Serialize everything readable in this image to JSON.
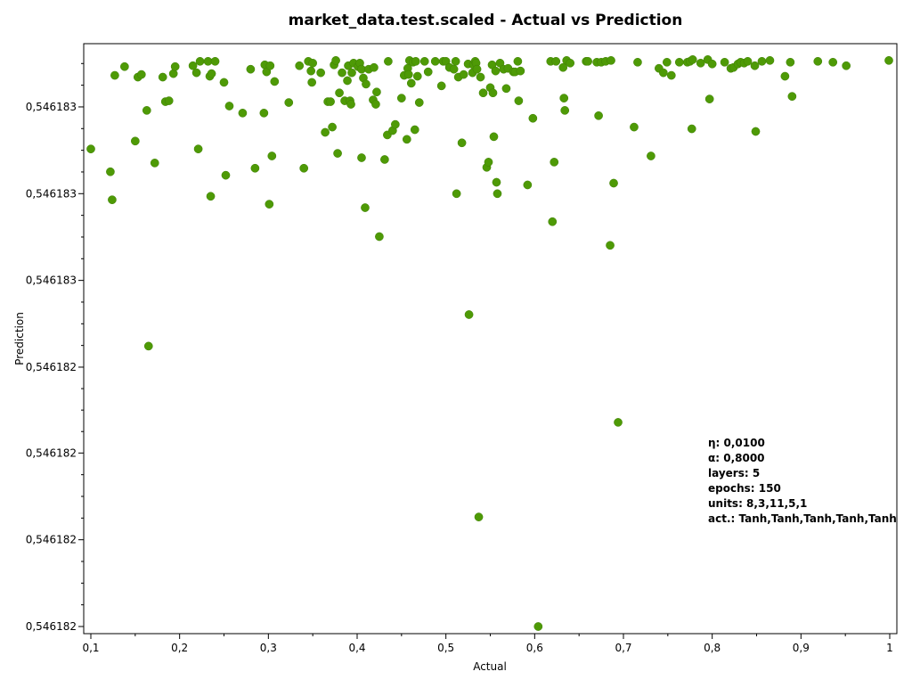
{
  "chart_data": {
    "type": "scatter",
    "title": "market_data.test.scaled - Actual vs Prediction",
    "xlabel": "Actual",
    "ylabel": "Prediction",
    "xlim": [
      0.095,
      1.007
    ],
    "ylim": [
      0,
      655
    ],
    "x_ticks": [
      {
        "v": 0.1,
        "label": "0,1"
      },
      {
        "v": 0.2,
        "label": "0,2"
      },
      {
        "v": 0.3,
        "label": "0,3"
      },
      {
        "v": 0.4,
        "label": "0,4"
      },
      {
        "v": 0.5,
        "label": "0,5"
      },
      {
        "v": 0.6,
        "label": "0,6"
      },
      {
        "v": 0.7,
        "label": "0,7"
      },
      {
        "v": 0.8,
        "label": "0,8"
      },
      {
        "v": 0.9,
        "label": "0,9"
      },
      {
        "v": 1.0,
        "label": "1"
      }
    ],
    "y_ticks": [
      {
        "v": 0,
        "label": "0,546182"
      },
      {
        "v": 99,
        "label": "0,546182"
      },
      {
        "v": 198,
        "label": "0,546182"
      },
      {
        "v": 296,
        "label": "0,546182"
      },
      {
        "v": 395,
        "label": "0,546183"
      },
      {
        "v": 494,
        "label": "0,546183"
      },
      {
        "v": 593,
        "label": "0,546183"
      }
    ],
    "grid": false,
    "legend": "none",
    "color": "#4e9a06",
    "points": [
      [
        0.1,
        545
      ],
      [
        0.122,
        519
      ],
      [
        0.124,
        487
      ],
      [
        0.127,
        629
      ],
      [
        0.138,
        639
      ],
      [
        0.15,
        554
      ],
      [
        0.153,
        627
      ],
      [
        0.157,
        630
      ],
      [
        0.163,
        589
      ],
      [
        0.165,
        320
      ],
      [
        0.172,
        529
      ],
      [
        0.181,
        627
      ],
      [
        0.184,
        599
      ],
      [
        0.188,
        600
      ],
      [
        0.193,
        631
      ],
      [
        0.195,
        639
      ],
      [
        0.215,
        640
      ],
      [
        0.219,
        632
      ],
      [
        0.221,
        545
      ],
      [
        0.223,
        645
      ],
      [
        0.232,
        645
      ],
      [
        0.234,
        628
      ],
      [
        0.235,
        491
      ],
      [
        0.236,
        631
      ],
      [
        0.24,
        645
      ],
      [
        0.25,
        621
      ],
      [
        0.252,
        515
      ],
      [
        0.256,
        594
      ],
      [
        0.271,
        586
      ],
      [
        0.28,
        636
      ],
      [
        0.285,
        523
      ],
      [
        0.295,
        586
      ],
      [
        0.296,
        641
      ],
      [
        0.298,
        633
      ],
      [
        0.301,
        482
      ],
      [
        0.302,
        640
      ],
      [
        0.304,
        537
      ],
      [
        0.307,
        622
      ],
      [
        0.323,
        598
      ],
      [
        0.335,
        640
      ],
      [
        0.34,
        523
      ],
      [
        0.345,
        645
      ],
      [
        0.348,
        634
      ],
      [
        0.349,
        621
      ],
      [
        0.35,
        643
      ],
      [
        0.359,
        632
      ],
      [
        0.364,
        564
      ],
      [
        0.367,
        599
      ],
      [
        0.37,
        599
      ],
      [
        0.372,
        570
      ],
      [
        0.374,
        641
      ],
      [
        0.376,
        646
      ],
      [
        0.378,
        540
      ],
      [
        0.38,
        609
      ],
      [
        0.383,
        632
      ],
      [
        0.386,
        600
      ],
      [
        0.389,
        623
      ],
      [
        0.39,
        640
      ],
      [
        0.392,
        600
      ],
      [
        0.393,
        596
      ],
      [
        0.394,
        632
      ],
      [
        0.396,
        643
      ],
      [
        0.401,
        639
      ],
      [
        0.403,
        643
      ],
      [
        0.405,
        636
      ],
      [
        0.405,
        535
      ],
      [
        0.407,
        626
      ],
      [
        0.409,
        478
      ],
      [
        0.41,
        619
      ],
      [
        0.413,
        636
      ],
      [
        0.418,
        601
      ],
      [
        0.419,
        638
      ],
      [
        0.421,
        596
      ],
      [
        0.422,
        610
      ],
      [
        0.425,
        445
      ],
      [
        0.431,
        533
      ],
      [
        0.434,
        561
      ],
      [
        0.435,
        645
      ],
      [
        0.44,
        566
      ],
      [
        0.443,
        573
      ],
      [
        0.45,
        603
      ],
      [
        0.453,
        629
      ],
      [
        0.456,
        556
      ],
      [
        0.457,
        637
      ],
      [
        0.458,
        630
      ],
      [
        0.459,
        646
      ],
      [
        0.461,
        620
      ],
      [
        0.463,
        644
      ],
      [
        0.465,
        567
      ],
      [
        0.466,
        645
      ],
      [
        0.468,
        628
      ],
      [
        0.47,
        598
      ],
      [
        0.476,
        645
      ],
      [
        0.48,
        633
      ],
      [
        0.488,
        645
      ],
      [
        0.495,
        617
      ],
      [
        0.497,
        645
      ],
      [
        0.5,
        645
      ],
      [
        0.504,
        638
      ],
      [
        0.509,
        636
      ],
      [
        0.511,
        645
      ],
      [
        0.512,
        494
      ],
      [
        0.514,
        627
      ],
      [
        0.518,
        552
      ],
      [
        0.52,
        630
      ],
      [
        0.525,
        642
      ],
      [
        0.526,
        356
      ],
      [
        0.53,
        632
      ],
      [
        0.531,
        641
      ],
      [
        0.533,
        645
      ],
      [
        0.534,
        643
      ],
      [
        0.535,
        636
      ],
      [
        0.537,
        125
      ],
      [
        0.539,
        627
      ],
      [
        0.542,
        609
      ],
      [
        0.546,
        524
      ],
      [
        0.548,
        530
      ],
      [
        0.55,
        615
      ],
      [
        0.552,
        641
      ],
      [
        0.553,
        609
      ],
      [
        0.554,
        559
      ],
      [
        0.556,
        634
      ],
      [
        0.557,
        507
      ],
      [
        0.558,
        494
      ],
      [
        0.561,
        643
      ],
      [
        0.565,
        636
      ],
      [
        0.568,
        614
      ],
      [
        0.57,
        637
      ],
      [
        0.576,
        633
      ],
      [
        0.578,
        633
      ],
      [
        0.581,
        645
      ],
      [
        0.582,
        600
      ],
      [
        0.584,
        634
      ],
      [
        0.592,
        504
      ],
      [
        0.598,
        580
      ],
      [
        0.604,
        0
      ],
      [
        0.618,
        645
      ],
      [
        0.62,
        462
      ],
      [
        0.622,
        530
      ],
      [
        0.624,
        645
      ],
      [
        0.632,
        638
      ],
      [
        0.633,
        603
      ],
      [
        0.634,
        589
      ],
      [
        0.636,
        646
      ],
      [
        0.64,
        643
      ],
      [
        0.658,
        645
      ],
      [
        0.66,
        645
      ],
      [
        0.67,
        644
      ],
      [
        0.672,
        583
      ],
      [
        0.675,
        644
      ],
      [
        0.68,
        645
      ],
      [
        0.685,
        435
      ],
      [
        0.686,
        646
      ],
      [
        0.689,
        506
      ],
      [
        0.694,
        233
      ],
      [
        0.712,
        570
      ],
      [
        0.716,
        644
      ],
      [
        0.731,
        537
      ],
      [
        0.74,
        637
      ],
      [
        0.745,
        632
      ],
      [
        0.749,
        644
      ],
      [
        0.754,
        629
      ],
      [
        0.763,
        644
      ],
      [
        0.772,
        644
      ],
      [
        0.775,
        645
      ],
      [
        0.777,
        568
      ],
      [
        0.778,
        647
      ],
      [
        0.787,
        643
      ],
      [
        0.795,
        647
      ],
      [
        0.797,
        602
      ],
      [
        0.8,
        642
      ],
      [
        0.814,
        644
      ],
      [
        0.821,
        637
      ],
      [
        0.824,
        638
      ],
      [
        0.829,
        642
      ],
      [
        0.832,
        644
      ],
      [
        0.836,
        643
      ],
      [
        0.84,
        645
      ],
      [
        0.848,
        640
      ],
      [
        0.849,
        565
      ],
      [
        0.856,
        645
      ],
      [
        0.865,
        646
      ],
      [
        0.882,
        628
      ],
      [
        0.888,
        644
      ],
      [
        0.89,
        605
      ],
      [
        0.919,
        645
      ],
      [
        0.936,
        644
      ],
      [
        0.951,
        640
      ],
      [
        0.999,
        646
      ]
    ]
  },
  "annotation": {
    "lines": [
      "η: 0,0100",
      "α: 0,8000",
      "layers: 5",
      "epochs: 150",
      "units: 8,3,11,5,1",
      "act.: Tanh,Tanh,Tanh,Tanh,Tanh"
    ]
  }
}
